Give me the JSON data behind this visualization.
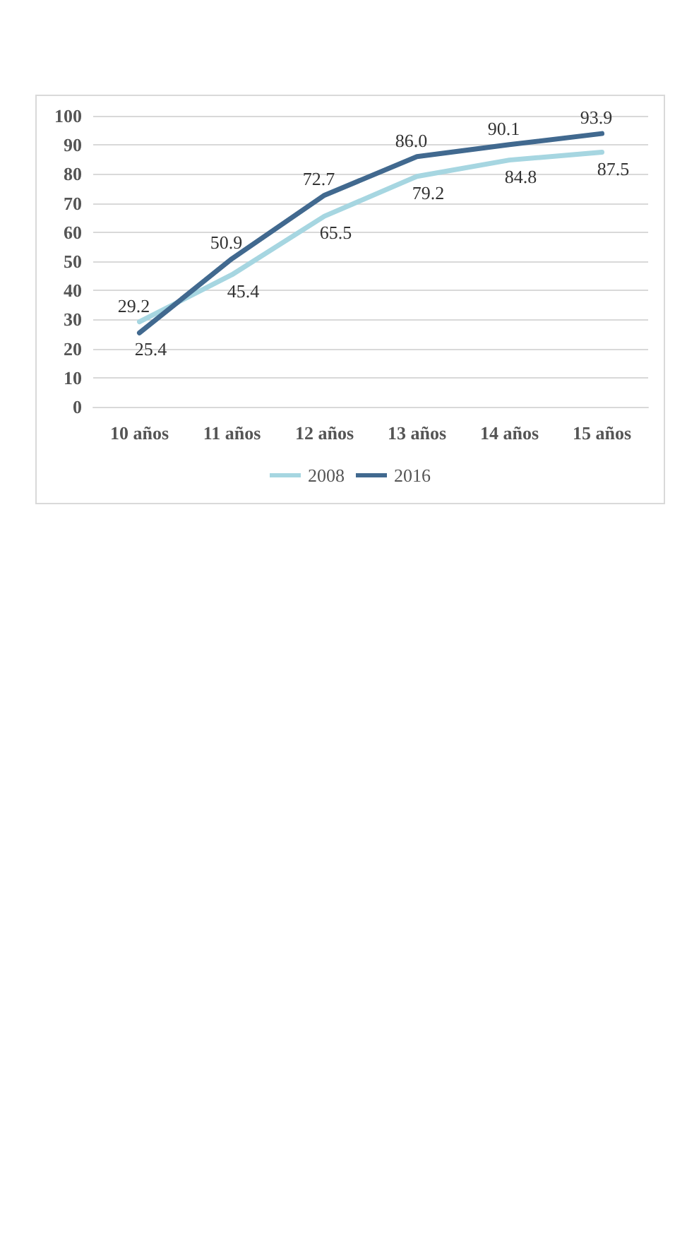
{
  "chart_data": {
    "type": "line",
    "categories": [
      "10 años",
      "11 años",
      "12 años",
      "13 años",
      "14 años",
      "15 años"
    ],
    "series": [
      {
        "name": "2008",
        "color": "#a6d6e1",
        "values": [
          29.2,
          45.4,
          65.5,
          79.2,
          84.8,
          87.5
        ],
        "value_labels": [
          "29.2",
          "45.4",
          "65.5",
          "79.2",
          "84.8",
          "87.5"
        ]
      },
      {
        "name": "2016",
        "color": "#41698f",
        "values": [
          25.4,
          50.9,
          72.7,
          86.0,
          90.1,
          93.9
        ],
        "value_labels": [
          "25.4",
          "50.9",
          "72.7",
          "86.0",
          "90.1",
          "93.9"
        ]
      }
    ],
    "ylim": [
      0,
      100
    ],
    "yticks": [
      0,
      10,
      20,
      30,
      40,
      50,
      60,
      70,
      80,
      90,
      100
    ],
    "grid": "y",
    "legend": "bottom",
    "marker": "none",
    "line_style": "solid"
  }
}
